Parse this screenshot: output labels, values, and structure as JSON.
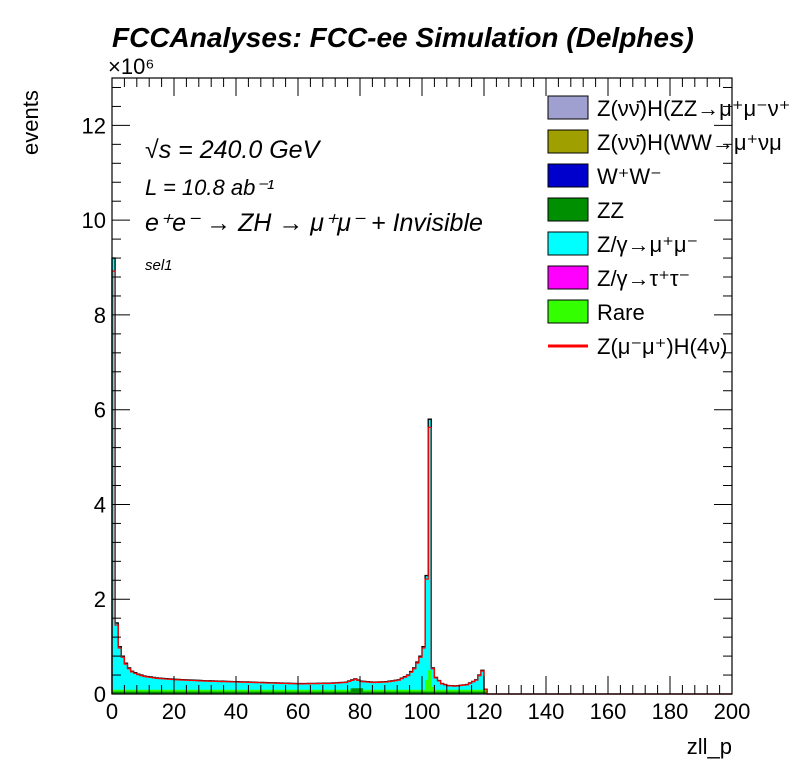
{
  "chart_data": {
    "type": "area",
    "title": "FCCAnalyses: FCC-ee Simulation (Delphes)",
    "xlabel": "zll_p",
    "ylabel": "events",
    "y_exponent": "×10⁶",
    "xlim": [
      0,
      200
    ],
    "ylim": [
      0,
      13
    ],
    "x_ticks": [
      "0",
      "20",
      "40",
      "60",
      "80",
      "100",
      "120",
      "140",
      "160",
      "180",
      "200"
    ],
    "y_ticks": [
      "0",
      "2",
      "4",
      "6",
      "8",
      "10",
      "12"
    ],
    "annotations": {
      "sqrt_s": "√s = 240.0 GeV",
      "lumi": "L = 10.8 ab⁻¹",
      "process": "e⁺e⁻ → ZH → μ⁺μ⁻ + Invisible",
      "selection": "sel1"
    },
    "legend": [
      {
        "label": "Z(νν̄)H(ZZ→μ⁺μ⁻ν⁺",
        "color": "#a0a0d0",
        "kind": "box"
      },
      {
        "label": "Z(νν̄)H(WW→μ⁺νμ",
        "color": "#9f9f00",
        "kind": "box"
      },
      {
        "label": "W⁺W⁻",
        "color": "#0000cc",
        "kind": "box"
      },
      {
        "label": "ZZ",
        "color": "#008f00",
        "kind": "box"
      },
      {
        "label": "Z/γ→μ⁺μ⁻",
        "color": "#00ffff",
        "kind": "box"
      },
      {
        "label": "Z/γ→τ⁺τ⁻",
        "color": "#ff00ff",
        "kind": "box"
      },
      {
        "label": "Rare",
        "color": "#33ff00",
        "kind": "box"
      },
      {
        "label": "Z(μ⁻μ⁺)H(4ν)",
        "color": "#ff0000",
        "kind": "line"
      }
    ],
    "bin_width": 1,
    "total_envelope": [
      [
        0,
        9.2
      ],
      [
        1,
        1.5
      ],
      [
        2,
        1.0
      ],
      [
        3,
        0.8
      ],
      [
        4,
        0.65
      ],
      [
        5,
        0.55
      ],
      [
        6,
        0.48
      ],
      [
        8,
        0.42
      ],
      [
        10,
        0.38
      ],
      [
        14,
        0.34
      ],
      [
        20,
        0.31
      ],
      [
        30,
        0.28
      ],
      [
        40,
        0.26
      ],
      [
        50,
        0.24
      ],
      [
        60,
        0.22
      ],
      [
        70,
        0.23
      ],
      [
        75,
        0.25
      ],
      [
        78,
        0.32
      ],
      [
        80,
        0.27
      ],
      [
        84,
        0.25
      ],
      [
        88,
        0.26
      ],
      [
        92,
        0.3
      ],
      [
        95,
        0.4
      ],
      [
        97,
        0.55
      ],
      [
        99,
        0.8
      ],
      [
        100,
        1.0
      ],
      [
        101,
        2.5
      ],
      [
        102,
        5.8
      ],
      [
        103,
        0.55
      ],
      [
        104,
        0.35
      ],
      [
        106,
        0.22
      ],
      [
        108,
        0.18
      ],
      [
        110,
        0.17
      ],
      [
        114,
        0.2
      ],
      [
        117,
        0.3
      ],
      [
        119,
        0.5
      ],
      [
        120,
        0.1
      ],
      [
        121,
        0.0
      ],
      [
        200,
        0.0
      ]
    ],
    "series": [
      {
        "name": "Z/γ→μ⁺μ⁻",
        "note": "dominant stacked component, cyan fill"
      },
      {
        "name": "Rare",
        "peak_x": 102,
        "peak_y": 0.5
      },
      {
        "name": "ZZ",
        "typical": 0.12
      }
    ]
  }
}
